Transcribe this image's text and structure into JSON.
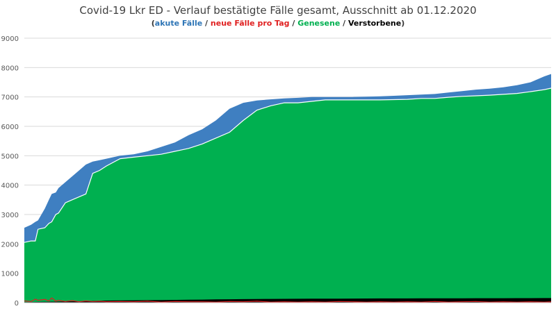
{
  "chart_data": {
    "type": "area",
    "title": "Covid-19 Lkr ED - Verlauf bestätigte Fälle gesamt, Ausschnitt ab 01.12.2020",
    "subtitle_parts": [
      {
        "text": "(",
        "color": "#333333"
      },
      {
        "text": "akute Fälle",
        "color": "#2e75b6"
      },
      {
        "text": " / ",
        "color": "#333333"
      },
      {
        "text": "neue Fälle pro Tag",
        "color": "#e02020"
      },
      {
        "text": " / ",
        "color": "#333333"
      },
      {
        "text": "Genesene",
        "color": "#00b050"
      },
      {
        "text": " / ",
        "color": "#333333"
      },
      {
        "text": "Verstorbene",
        "color": "#000000"
      },
      {
        "text": ")",
        "color": "#333333"
      }
    ],
    "ylim": [
      0,
      9000
    ],
    "yticks": [
      0,
      1000,
      2000,
      3000,
      4000,
      5000,
      6000,
      7000,
      8000,
      9000
    ],
    "grid": true,
    "xlabel": "",
    "ylabel": "",
    "x": [
      0,
      5,
      8,
      10,
      15,
      18,
      20,
      23,
      25,
      30,
      35,
      40,
      45,
      50,
      55,
      60,
      70,
      80,
      90,
      100,
      110,
      120,
      130,
      140,
      150,
      160,
      170,
      180,
      190,
      200,
      210,
      220,
      230,
      240,
      250,
      260,
      270,
      280,
      290,
      300,
      310,
      320,
      330,
      340,
      350,
      360,
      370,
      380,
      385
    ],
    "series": [
      {
        "name": "Genesene",
        "color": "#00b050",
        "values": [
          2050,
          2100,
          2100,
          2500,
          2550,
          2700,
          2750,
          3000,
          3050,
          3400,
          3500,
          3600,
          3700,
          4400,
          4500,
          4650,
          4900,
          4950,
          5000,
          5050,
          5150,
          5250,
          5400,
          5600,
          5800,
          6200,
          6550,
          6700,
          6800,
          6800,
          6850,
          6900,
          6900,
          6900,
          6900,
          6900,
          6910,
          6920,
          6950,
          6950,
          6990,
          7020,
          7040,
          7060,
          7090,
          7120,
          7180,
          7250,
          7300
        ]
      },
      {
        "name": "Gesamt (akute Fälle)",
        "color": "#3f7fc1",
        "values": [
          2550,
          2650,
          2750,
          2800,
          3200,
          3500,
          3700,
          3750,
          3900,
          4100,
          4300,
          4500,
          4700,
          4800,
          4850,
          4900,
          5000,
          5050,
          5150,
          5300,
          5450,
          5700,
          5900,
          6200,
          6600,
          6800,
          6880,
          6920,
          6950,
          6970,
          7000,
          7000,
          7000,
          7000,
          7010,
          7020,
          7040,
          7060,
          7080,
          7100,
          7150,
          7200,
          7250,
          7280,
          7330,
          7400,
          7500,
          7700,
          7780
        ]
      },
      {
        "name": "neue Fälle pro Tag",
        "color": "#e02020",
        "values": [
          60,
          40,
          120,
          80,
          110,
          60,
          160,
          50,
          80,
          40,
          70,
          30,
          60,
          40,
          50,
          30,
          40,
          30,
          50,
          20,
          40,
          30,
          30,
          20,
          40,
          30,
          50,
          20,
          30,
          20,
          30,
          20,
          40,
          30,
          20,
          30,
          20,
          30,
          20,
          40,
          20,
          30,
          40,
          20,
          30,
          20,
          30,
          20,
          30
        ]
      },
      {
        "name": "Verstorbene",
        "color": "#000000",
        "values": [
          20,
          22,
          24,
          25,
          28,
          30,
          32,
          34,
          36,
          40,
          45,
          50,
          55,
          60,
          65,
          70,
          75,
          80,
          85,
          90,
          95,
          100,
          105,
          110,
          115,
          120,
          125,
          128,
          130,
          132,
          134,
          136,
          138,
          140,
          142,
          143,
          144,
          145,
          146,
          147,
          148,
          149,
          150,
          151,
          152,
          153,
          154,
          155,
          156
        ]
      }
    ]
  }
}
